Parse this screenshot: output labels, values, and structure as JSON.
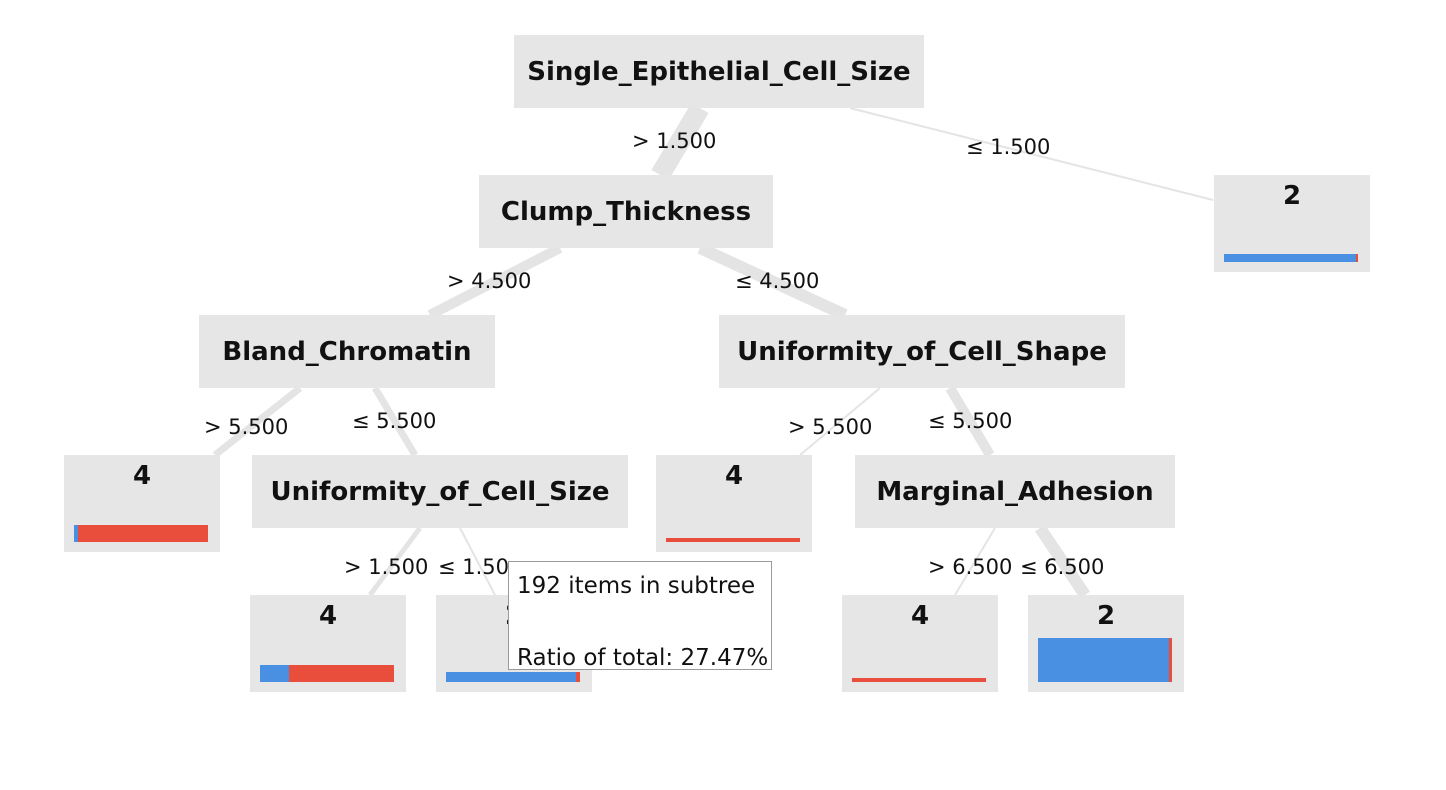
{
  "colors": {
    "class_2": "#4a90e2",
    "class_4": "#e94e3c",
    "node_bg": "#e6e6e6",
    "edge": "#e4e4e4"
  },
  "nodes": {
    "root": {
      "label": "Single_Epithelial_Cell_Size"
    },
    "clump": {
      "label": "Clump_Thickness"
    },
    "bland": {
      "label": "Bland_Chromatin"
    },
    "shape": {
      "label": "Uniformity_of_Cell_Shape"
    },
    "size": {
      "label": "Uniformity_of_Cell_Size"
    },
    "margin": {
      "label": "Marginal_Adhesion"
    },
    "leaf_root_right": {
      "label": "2",
      "share_class_2": 0.985,
      "share_class_4": 0.015,
      "subtree_fraction": 0.04
    },
    "leaf_bland_gt": {
      "label": "4",
      "share_class_2": 0.03,
      "share_class_4": 0.97,
      "subtree_fraction": 0.09
    },
    "leaf_shape_gt": {
      "label": "4",
      "share_class_2": 0.0,
      "share_class_4": 1.0,
      "subtree_fraction": 0.02
    },
    "leaf_size_gt": {
      "label": "4",
      "share_class_2": 0.22,
      "share_class_4": 0.78,
      "subtree_fraction": 0.09
    },
    "leaf_size_le": {
      "label": "2",
      "share_class_2": 0.97,
      "share_class_4": 0.03,
      "subtree_fraction": 0.05
    },
    "leaf_margin_gt": {
      "label": "4",
      "share_class_2": 0.0,
      "share_class_4": 1.0,
      "subtree_fraction": 0.02
    },
    "leaf_margin_le": {
      "label": "2",
      "share_class_2": 0.975,
      "share_class_4": 0.025,
      "subtree_fraction": 0.23
    }
  },
  "edges": {
    "root_gt": "> 1.500",
    "root_le": "≤ 1.500",
    "clump_gt": "> 4.500",
    "clump_le": "≤ 4.500",
    "bland_gt": "> 5.500",
    "bland_le": "≤ 5.500",
    "shape_gt": "> 5.500",
    "shape_le": "≤ 5.500",
    "size_gt": "> 1.500",
    "size_le": "≤ 1.50",
    "margin_gt": "> 6.500",
    "margin_le": "≤ 6.500"
  },
  "tooltip": {
    "line1": "192 items in subtree",
    "line2": "Ratio of total: 27.47%"
  }
}
